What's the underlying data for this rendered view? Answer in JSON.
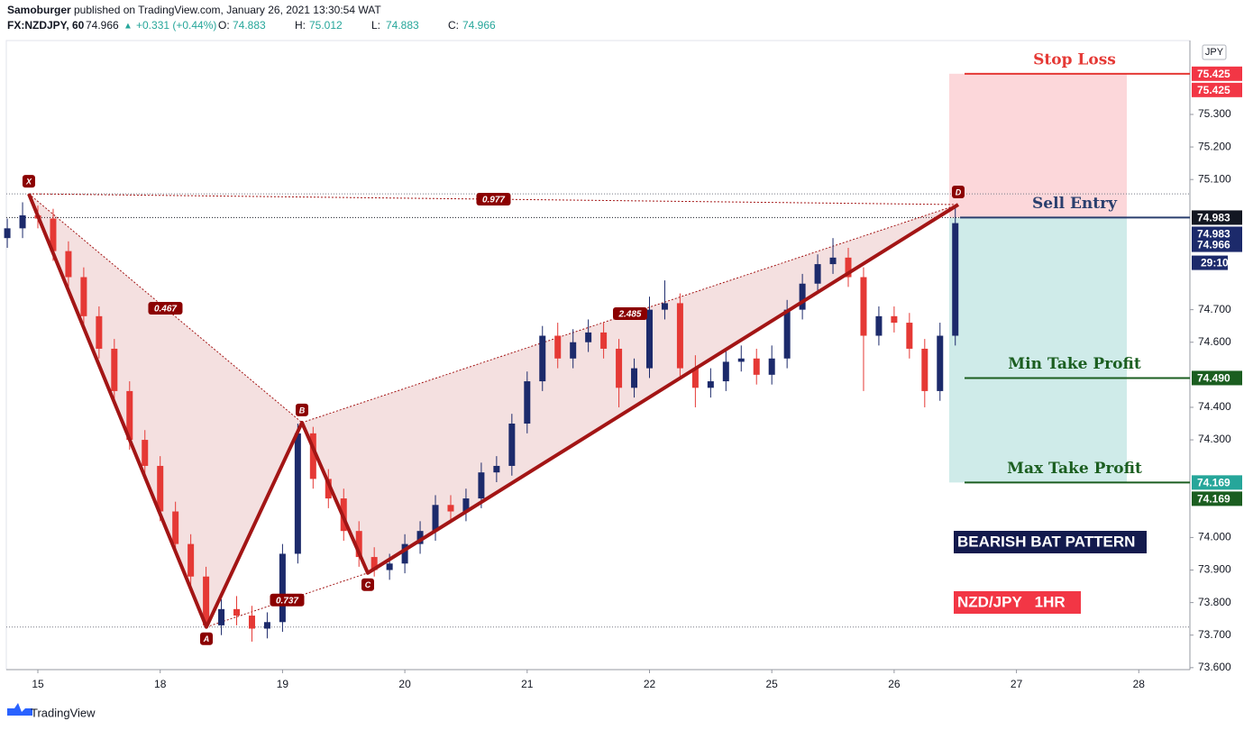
{
  "header": {
    "author": "Samoburger",
    "published": "published on TradingView.com, January 26, 2021 13:30:54 WAT",
    "symbol": "FX:NZDJPY, 60",
    "last": "74.966",
    "change": "+0.331 (+0.44%)",
    "ohlc": [
      {
        "label": "O:",
        "value": "74.883"
      },
      {
        "label": "H:",
        "value": "75.012"
      },
      {
        "label": "L:",
        "value": "74.883"
      },
      {
        "label": "C:",
        "value": "74.966"
      }
    ]
  },
  "chart_data": {
    "type": "candlestick",
    "currency": "JPY",
    "up_color": "#1c2a6b",
    "down_color": "#e53935",
    "x": [
      -0.25,
      -0.125,
      0,
      0.125,
      0.25,
      0.375,
      0.5,
      0.625,
      0.75,
      0.875,
      1,
      1.125,
      1.25,
      1.375,
      1.5,
      1.625,
      1.75,
      1.875,
      2,
      2.125,
      2.25,
      2.375,
      2.5,
      2.625,
      2.75,
      2.875,
      3,
      3.125,
      3.25,
      3.375,
      3.5,
      3.625,
      3.75,
      3.875,
      4,
      4.125,
      4.25,
      4.375,
      4.5,
      4.625,
      4.75,
      4.875,
      5,
      5.125,
      5.25,
      5.375,
      5.5,
      5.625,
      5.75,
      5.875,
      6,
      6.125,
      6.25,
      6.375,
      6.5,
      6.625,
      6.75,
      6.875,
      7,
      7.125,
      7.25,
      7.375,
      7.5
    ],
    "open": [
      74.92,
      74.95,
      74.99,
      74.98,
      74.88,
      74.8,
      74.68,
      74.58,
      74.45,
      74.3,
      74.22,
      74.08,
      73.98,
      73.88,
      73.73,
      73.78,
      73.76,
      73.72,
      73.74,
      73.95,
      74.32,
      74.18,
      74.12,
      74.02,
      73.94,
      73.9,
      73.92,
      73.98,
      74.02,
      74.1,
      74.08,
      74.12,
      74.2,
      74.22,
      74.35,
      74.48,
      74.62,
      74.55,
      74.6,
      74.63,
      74.58,
      74.46,
      74.52,
      74.7,
      74.72,
      74.52,
      74.46,
      74.48,
      74.54,
      74.55,
      74.5,
      74.55,
      74.7,
      74.78,
      74.84,
      74.86,
      74.8,
      74.62,
      74.68,
      74.66,
      74.58,
      74.45,
      74.62
    ],
    "high": [
      74.98,
      75.03,
      75.02,
      75.01,
      74.91,
      74.83,
      74.71,
      74.61,
      74.48,
      74.33,
      74.25,
      74.11,
      74.01,
      73.91,
      73.81,
      73.82,
      73.79,
      73.77,
      73.98,
      74.35,
      74.34,
      74.21,
      74.15,
      74.05,
      73.97,
      73.95,
      74.01,
      74.05,
      74.13,
      74.13,
      74.15,
      74.23,
      74.25,
      74.38,
      74.51,
      74.65,
      74.66,
      74.64,
      74.67,
      74.66,
      74.61,
      74.55,
      74.74,
      74.79,
      74.75,
      74.56,
      74.52,
      74.58,
      74.59,
      74.58,
      74.59,
      74.73,
      74.81,
      74.87,
      74.92,
      74.89,
      74.83,
      74.71,
      74.71,
      74.69,
      74.61,
      74.66,
      75.02
    ],
    "low": [
      74.89,
      74.92,
      74.95,
      74.85,
      74.77,
      74.65,
      74.55,
      74.42,
      74.27,
      74.19,
      74.05,
      73.95,
      73.85,
      73.72,
      73.7,
      73.73,
      73.68,
      73.69,
      73.71,
      73.92,
      74.15,
      74.09,
      73.99,
      73.91,
      73.88,
      73.87,
      73.89,
      73.95,
      73.99,
      74.05,
      74.05,
      74.09,
      74.17,
      74.19,
      74.32,
      74.45,
      74.52,
      74.52,
      74.57,
      74.55,
      74.4,
      74.43,
      74.49,
      74.67,
      74.49,
      74.4,
      74.43,
      74.45,
      74.51,
      74.47,
      74.47,
      74.52,
      74.67,
      74.75,
      74.81,
      74.77,
      74.45,
      74.59,
      74.63,
      74.55,
      74.4,
      74.42,
      74.59
    ],
    "close": [
      74.95,
      74.99,
      74.98,
      74.88,
      74.8,
      74.68,
      74.58,
      74.45,
      74.3,
      74.22,
      74.08,
      73.98,
      73.88,
      73.73,
      73.78,
      73.76,
      73.72,
      73.74,
      73.95,
      74.32,
      74.18,
      74.12,
      74.02,
      73.94,
      73.9,
      73.92,
      73.98,
      74.02,
      74.1,
      74.08,
      74.12,
      74.2,
      74.22,
      74.35,
      74.48,
      74.62,
      74.55,
      74.6,
      74.63,
      74.58,
      74.46,
      74.52,
      74.7,
      74.72,
      74.52,
      74.46,
      74.48,
      74.54,
      74.55,
      74.5,
      74.55,
      74.7,
      74.78,
      74.84,
      74.86,
      74.8,
      74.62,
      74.68,
      74.66,
      74.58,
      74.45,
      74.62,
      74.966
    ],
    "xlim": [
      -0.258,
      9.418
    ],
    "xticks": [
      {
        "value": 0,
        "label": "15"
      },
      {
        "value": 1,
        "label": "18"
      },
      {
        "value": 2,
        "label": "19"
      },
      {
        "value": 3,
        "label": "20"
      },
      {
        "value": 4,
        "label": "21"
      },
      {
        "value": 5,
        "label": "22"
      },
      {
        "value": 6,
        "label": "25"
      },
      {
        "value": 7,
        "label": "26"
      },
      {
        "value": 8,
        "label": "27"
      },
      {
        "value": 9,
        "label": "28"
      }
    ],
    "ylim": [
      73.594,
      75.527
    ],
    "yticks": [
      {
        "value": 75.3,
        "label": "75.300"
      },
      {
        "value": 75.2,
        "label": "75.200"
      },
      {
        "value": 75.1,
        "label": "75.100"
      },
      {
        "value": 74.7,
        "label": "74.700"
      },
      {
        "value": 74.6,
        "label": "74.600"
      },
      {
        "value": 74.4,
        "label": "74.400"
      },
      {
        "value": 74.3,
        "label": "74.300"
      },
      {
        "value": 74.0,
        "label": "74.000"
      },
      {
        "value": 73.9,
        "label": "73.900"
      },
      {
        "value": 73.8,
        "label": "73.800"
      },
      {
        "value": 73.7,
        "label": "73.700"
      },
      {
        "value": 73.6,
        "label": "73.600"
      }
    ],
    "pattern": {
      "color": "#a31515",
      "points": [
        {
          "label": "X",
          "x": -0.074,
          "y": 75.056
        },
        {
          "label": "A",
          "x": 1.378,
          "y": 73.725
        },
        {
          "label": "B",
          "x": 2.159,
          "y": 74.353
        },
        {
          "label": "C",
          "x": 2.697,
          "y": 73.891
        },
        {
          "label": "D",
          "x": 7.524,
          "y": 75.023
        }
      ],
      "ratios": [
        0.977,
        0.467,
        0.737,
        2.485
      ]
    },
    "levels": [
      {
        "name": "Stop Loss",
        "value": 75.425,
        "color": "#e53935",
        "tag_colors": [
          "#f23645",
          "#f23645"
        ]
      },
      {
        "name": "Sell Entry",
        "value": 74.983,
        "color": "#2a3f6e",
        "tag_colors": [
          "#131722",
          "#1c2a6b"
        ]
      },
      {
        "name": "Min Take Profit",
        "value": 74.49,
        "value_label": "74.490",
        "color": "#1b5e20",
        "tag_colors": [
          "#1b5e20"
        ]
      },
      {
        "name": "Max Take Profit",
        "value": 74.169,
        "color": "#1b5e20",
        "tag_colors": [
          "#26a69a",
          "#1b5e20"
        ]
      }
    ],
    "last_price": 74.966,
    "countdown": "29:10",
    "annotations": [
      "BEARISH BAT PATTERN",
      "NZD/JPY   1HR"
    ]
  },
  "footer": "TradingView"
}
